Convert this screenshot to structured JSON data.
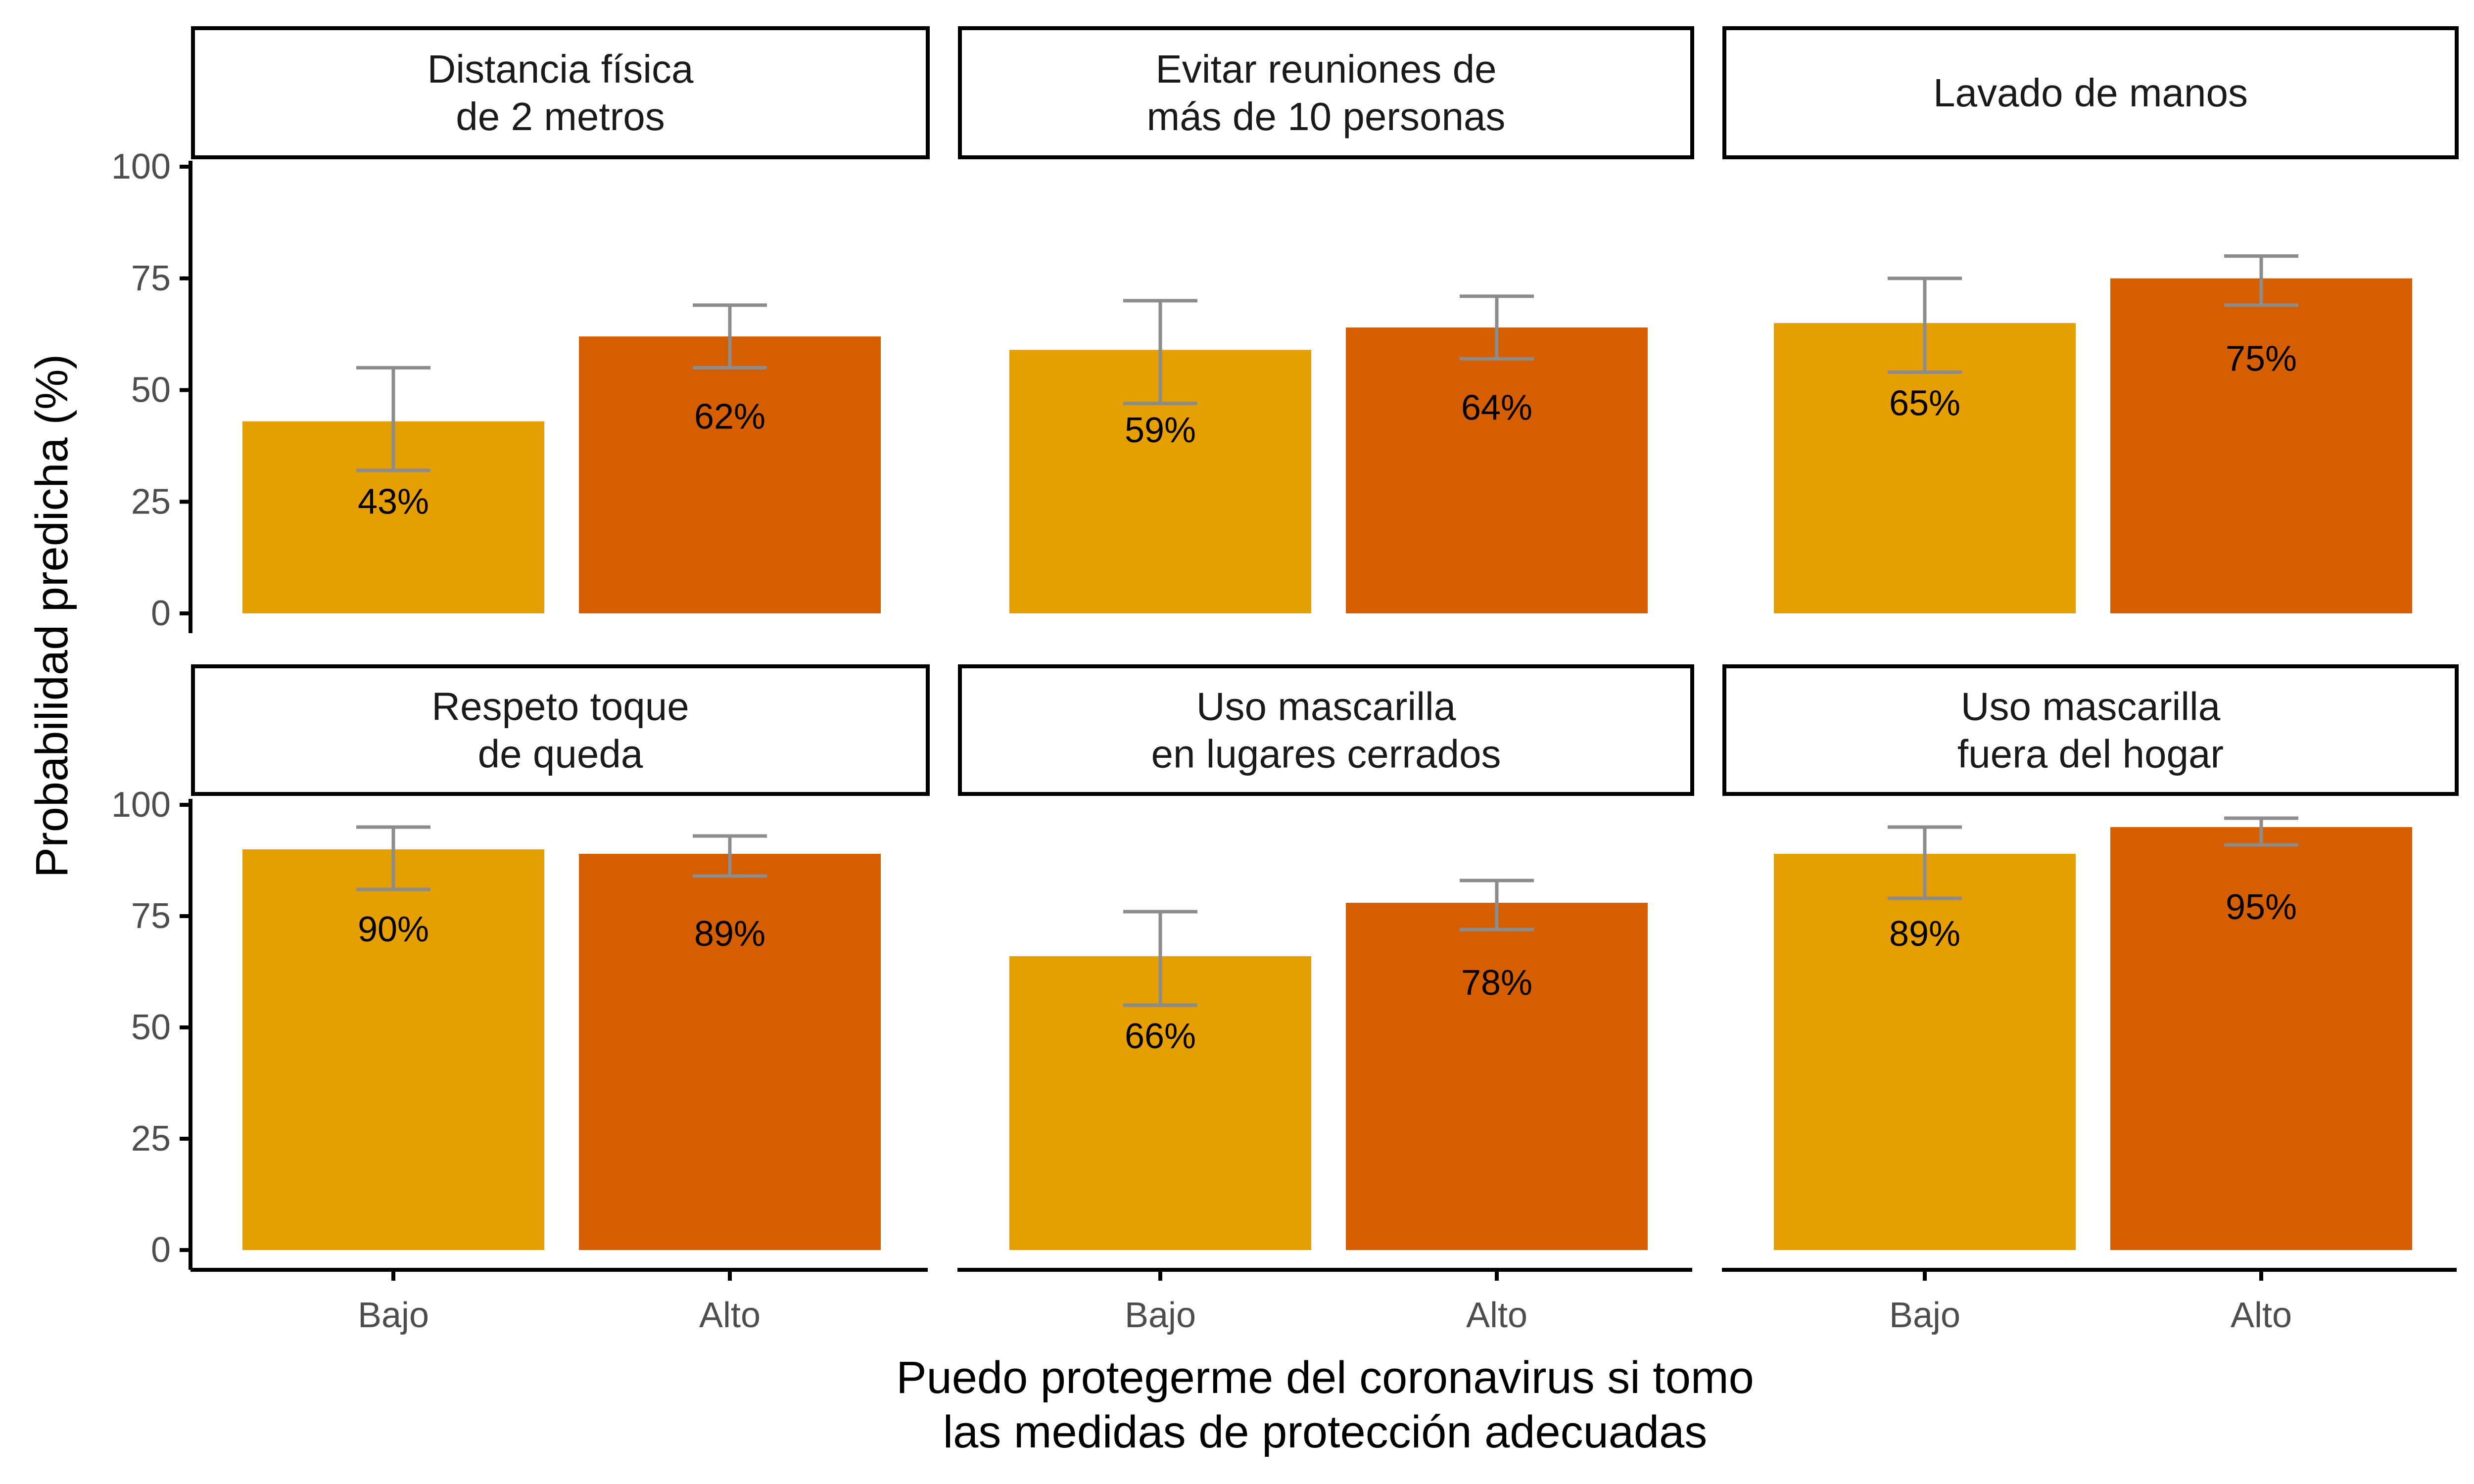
{
  "colors": {
    "bajo": "#E69F00",
    "alto": "#D55E00",
    "errorbar": "#8C8C8C",
    "axis": "#000000",
    "tick_text": "#4D4D4D",
    "label_text": "#000000"
  },
  "chart_data": {
    "type": "bar",
    "layout": "facet-grid-2x3",
    "ylabel": "Probabilidad predicha (%)",
    "xlabel": "Puedo protegerme del coronavirus si tomo\nlas medidas de protección adecuadas",
    "categories": [
      "Bajo",
      "Alto"
    ],
    "yticks": [
      "0",
      "25",
      "50",
      "75",
      "100"
    ],
    "ylim": [
      0,
      100
    ],
    "grid": false,
    "legend": "none",
    "panels": [
      {
        "title": "Distancia física\nde 2 metros",
        "values": [
          43,
          62
        ],
        "lower": [
          32,
          55
        ],
        "upper": [
          55,
          69
        ],
        "labels": [
          "43%",
          "62%"
        ]
      },
      {
        "title": "Evitar reuniones de\nmás de 10 personas",
        "values": [
          59,
          64
        ],
        "lower": [
          47,
          57
        ],
        "upper": [
          70,
          71
        ],
        "labels": [
          "59%",
          "64%"
        ]
      },
      {
        "title": "Lavado de manos",
        "values": [
          65,
          75
        ],
        "lower": [
          54,
          69
        ],
        "upper": [
          75,
          80
        ],
        "labels": [
          "65%",
          "75%"
        ]
      },
      {
        "title": "Respeto toque\nde queda",
        "values": [
          90,
          89
        ],
        "lower": [
          81,
          84
        ],
        "upper": [
          95,
          93
        ],
        "labels": [
          "90%",
          "89%"
        ]
      },
      {
        "title": "Uso mascarilla\nen lugares cerrados",
        "values": [
          66,
          78
        ],
        "lower": [
          55,
          72
        ],
        "upper": [
          76,
          83
        ],
        "labels": [
          "66%",
          "78%"
        ]
      },
      {
        "title": "Uso mascarilla\nfuera del hogar",
        "values": [
          89,
          95
        ],
        "lower": [
          79,
          91
        ],
        "upper": [
          95,
          97
        ],
        "labels": [
          "89%",
          "95%"
        ]
      }
    ]
  }
}
